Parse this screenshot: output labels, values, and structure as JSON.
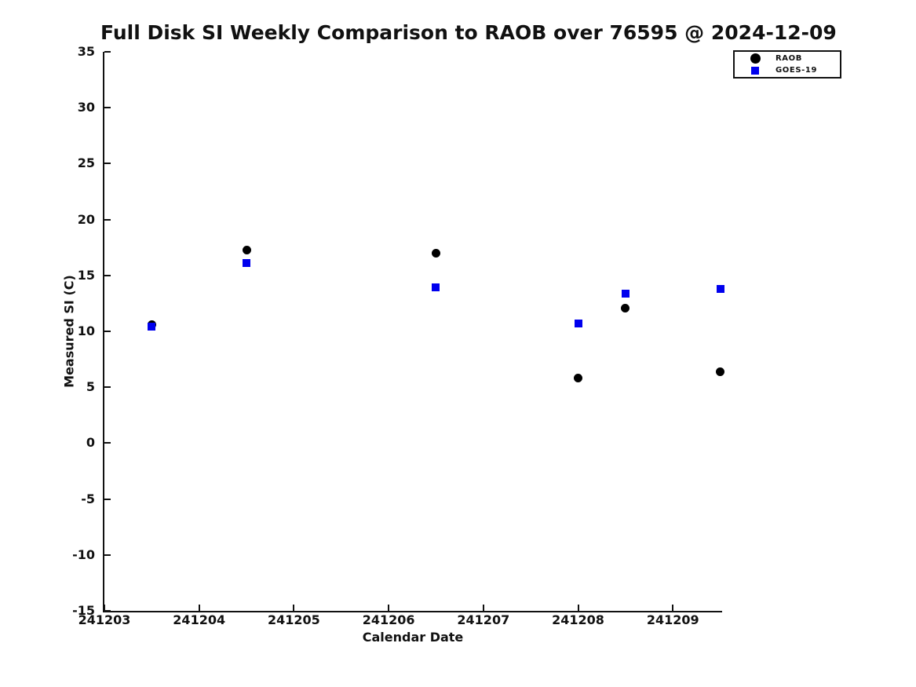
{
  "chart_data": {
    "type": "scatter",
    "title": "Full Disk SI Weekly Comparison to RAOB over 76595 @ 2024-12-09",
    "xlabel": "Calendar Date",
    "ylabel": "Measured SI (C)",
    "xlim": [
      241203,
      241209.52
    ],
    "ylim": [
      -15,
      35
    ],
    "x_ticks": [
      241203,
      241204,
      241205,
      241206,
      241207,
      241208,
      241209
    ],
    "y_ticks": [
      35,
      30,
      25,
      20,
      15,
      10,
      5,
      0,
      -5,
      -10,
      -15
    ],
    "grid": false,
    "legend_position": "outside-upper-right",
    "axis_color": "#111111",
    "background_color": "#ffffff",
    "series": [
      {
        "name": "RAOB",
        "marker": "circle",
        "color": "#000000",
        "points": [
          [
            241203.5,
            10.6
          ],
          [
            241204.5,
            17.3
          ],
          [
            241206.5,
            17.0
          ],
          [
            241208.0,
            5.8
          ],
          [
            241208.5,
            12.1
          ],
          [
            241209.5,
            6.4
          ]
        ]
      },
      {
        "name": "GOES-19",
        "marker": "square",
        "color": "#0000ee",
        "points": [
          [
            241203.5,
            10.4
          ],
          [
            241204.5,
            16.1
          ],
          [
            241206.5,
            13.9
          ],
          [
            241208.0,
            10.7
          ],
          [
            241208.5,
            13.4
          ],
          [
            241209.5,
            13.8
          ]
        ]
      }
    ]
  }
}
